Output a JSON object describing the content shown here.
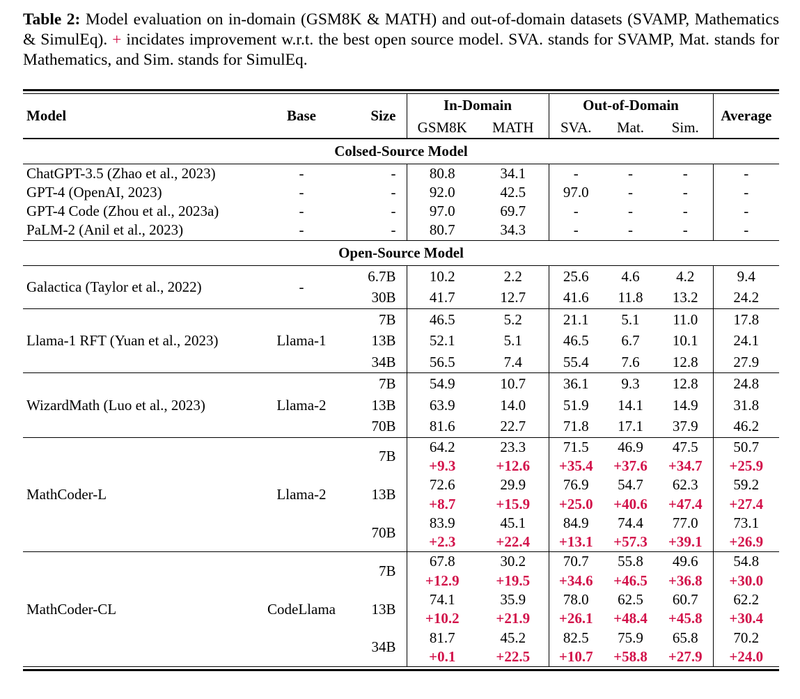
{
  "colors": {
    "accent_red": "#d2124a",
    "text": "#000000",
    "background": "#ffffff"
  },
  "caption": {
    "label": "Table 2:",
    "text_before_plus": " Model evaluation on in-domain (GSM8K & MATH) and out-of-domain datasets (SVAMP, Mathematics & SimulEq). ",
    "plus": "+",
    "text_after_plus": " incidates improvement w.r.t. the best open source model. SVA. stands for SVAMP, Mat. stands for Mathematics, and Sim. stands for SimulEq."
  },
  "header": {
    "model": "Model",
    "base": "Base",
    "size": "Size",
    "in_domain": "In-Domain",
    "out_of_domain": "Out-of-Domain",
    "average": "Average",
    "sub": [
      "GSM8K",
      "MATH",
      "SVA.",
      "Mat.",
      "Sim."
    ]
  },
  "chart_data": {
    "type": "table",
    "title": "Model evaluation on in-domain and out-of-domain datasets",
    "columns": [
      "Model",
      "Base",
      "Size",
      "GSM8K",
      "MATH",
      "SVA.",
      "Mat.",
      "Sim.",
      "Average"
    ],
    "sections": [
      {
        "title": "Colsed-Source Model",
        "blocks": [
          {
            "model": "ChatGPT-3.5 (Zhao et al., 2023)",
            "base": "-",
            "rows": [
              {
                "size": "-",
                "values": [
                  "80.8",
                  "34.1",
                  "-",
                  "-",
                  "-",
                  "-"
                ]
              }
            ]
          },
          {
            "model": "GPT-4 (OpenAI, 2023)",
            "base": "-",
            "rows": [
              {
                "size": "-",
                "values": [
                  "92.0",
                  "42.5",
                  "97.0",
                  "-",
                  "-",
                  "-"
                ]
              }
            ]
          },
          {
            "model": "GPT-4 Code (Zhou et al., 2023a)",
            "base": "-",
            "rows": [
              {
                "size": "-",
                "values": [
                  "97.0",
                  "69.7",
                  "-",
                  "-",
                  "-",
                  "-"
                ]
              }
            ]
          },
          {
            "model": "PaLM-2 (Anil et al., 2023)",
            "base": "-",
            "rows": [
              {
                "size": "-",
                "values": [
                  "80.7",
                  "34.3",
                  "-",
                  "-",
                  "-",
                  "-"
                ]
              }
            ]
          }
        ]
      },
      {
        "title": "Open-Source Model",
        "blocks": [
          {
            "model": "Galactica (Taylor et al., 2022)",
            "base": "-",
            "rows": [
              {
                "size": "6.7B",
                "values": [
                  "10.2",
                  "2.2",
                  "25.6",
                  "4.6",
                  "4.2",
                  "9.4"
                ]
              },
              {
                "size": "30B",
                "values": [
                  "41.7",
                  "12.7",
                  "41.6",
                  "11.8",
                  "13.2",
                  "24.2"
                ]
              }
            ]
          },
          {
            "model": "Llama-1 RFT (Yuan et al., 2023)",
            "base": "Llama-1",
            "rows": [
              {
                "size": "7B",
                "values": [
                  "46.5",
                  "5.2",
                  "21.1",
                  "5.1",
                  "11.0",
                  "17.8"
                ]
              },
              {
                "size": "13B",
                "values": [
                  "52.1",
                  "5.1",
                  "46.5",
                  "6.7",
                  "10.1",
                  "24.1"
                ]
              },
              {
                "size": "34B",
                "values": [
                  "56.5",
                  "7.4",
                  "55.4",
                  "7.6",
                  "12.8",
                  "27.9"
                ]
              }
            ]
          },
          {
            "model": "WizardMath (Luo et al., 2023)",
            "base": "Llama-2",
            "rows": [
              {
                "size": "7B",
                "values": [
                  "54.9",
                  "10.7",
                  "36.1",
                  "9.3",
                  "12.8",
                  "24.8"
                ]
              },
              {
                "size": "13B",
                "values": [
                  "63.9",
                  "14.0",
                  "51.9",
                  "14.1",
                  "14.9",
                  "31.8"
                ]
              },
              {
                "size": "70B",
                "values": [
                  "81.6",
                  "22.7",
                  "71.8",
                  "17.1",
                  "37.9",
                  "46.2"
                ]
              }
            ]
          },
          {
            "model": "MathCoder-L",
            "base": "Llama-2",
            "rows": [
              {
                "size": "7B",
                "values": [
                  "64.2",
                  "23.3",
                  "71.5",
                  "46.9",
                  "47.5",
                  "50.7"
                ],
                "delta": [
                  "+9.3",
                  "+12.6",
                  "+35.4",
                  "+37.6",
                  "+34.7",
                  "+25.9"
                ]
              },
              {
                "size": "13B",
                "values": [
                  "72.6",
                  "29.9",
                  "76.9",
                  "54.7",
                  "62.3",
                  "59.2"
                ],
                "delta": [
                  "+8.7",
                  "+15.9",
                  "+25.0",
                  "+40.6",
                  "+47.4",
                  "+27.4"
                ]
              },
              {
                "size": "70B",
                "values": [
                  "83.9",
                  "45.1",
                  "84.9",
                  "74.4",
                  "77.0",
                  "73.1"
                ],
                "delta": [
                  "+2.3",
                  "+22.4",
                  "+13.1",
                  "+57.3",
                  "+39.1",
                  "+26.9"
                ]
              }
            ]
          },
          {
            "model": "MathCoder-CL",
            "base": "CodeLlama",
            "rows": [
              {
                "size": "7B",
                "values": [
                  "67.8",
                  "30.2",
                  "70.7",
                  "55.8",
                  "49.6",
                  "54.8"
                ],
                "delta": [
                  "+12.9",
                  "+19.5",
                  "+34.6",
                  "+46.5",
                  "+36.8",
                  "+30.0"
                ]
              },
              {
                "size": "13B",
                "values": [
                  "74.1",
                  "35.9",
                  "78.0",
                  "62.5",
                  "60.7",
                  "62.2"
                ],
                "delta": [
                  "+10.2",
                  "+21.9",
                  "+26.1",
                  "+48.4",
                  "+45.8",
                  "+30.4"
                ]
              },
              {
                "size": "34B",
                "values": [
                  "81.7",
                  "45.2",
                  "82.5",
                  "75.9",
                  "65.8",
                  "70.2"
                ],
                "delta": [
                  "+0.1",
                  "+22.5",
                  "+10.7",
                  "+58.8",
                  "+27.9",
                  "+24.0"
                ]
              }
            ]
          }
        ]
      }
    ]
  }
}
